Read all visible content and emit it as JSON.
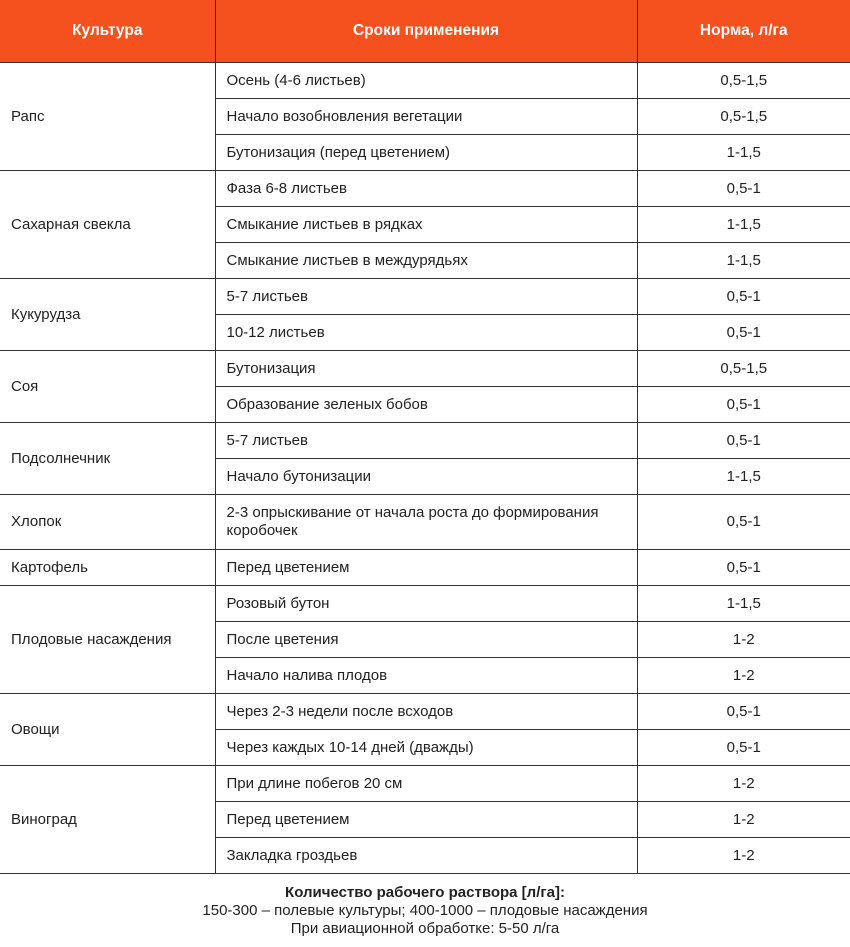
{
  "header": {
    "crop": "Культура",
    "timing": "Сроки применения",
    "rate": "Норма, л/га"
  },
  "accent_color": "#f4511e",
  "groups": [
    {
      "crop": "Рапс",
      "rows": [
        [
          "Осень (4-6 листьев)",
          "0,5-1,5"
        ],
        [
          "Начало возобновления вегетации",
          "0,5-1,5"
        ],
        [
          "Бутонизация (перед цветением)",
          "1-1,5"
        ]
      ]
    },
    {
      "crop": "Сахарная свекла",
      "rows": [
        [
          "Фаза 6-8 листьев",
          "0,5-1"
        ],
        [
          "Смыкание листьев в рядках",
          "1-1,5"
        ],
        [
          "Смыкание листьев в междурядьях",
          "1-1,5"
        ]
      ]
    },
    {
      "crop": "Кукурудза",
      "rows": [
        [
          "5-7 листьев",
          "0,5-1"
        ],
        [
          "10-12 листьев",
          "0,5-1"
        ]
      ]
    },
    {
      "crop": "Соя",
      "rows": [
        [
          "Бутонизация",
          "0,5-1,5"
        ],
        [
          "Образование зеленых бобов",
          "0,5-1"
        ]
      ]
    },
    {
      "crop": "Подсолнечник",
      "rows": [
        [
          "5-7 листьев",
          "0,5-1"
        ],
        [
          "Начало бутонизации",
          "1-1,5"
        ]
      ]
    },
    {
      "crop": "Хлопок",
      "rows": [
        [
          "2-3 опрыскивание от начала роста до формирования коробочек",
          "0,5-1"
        ]
      ]
    },
    {
      "crop": "Картофель",
      "rows": [
        [
          "Перед цветением",
          "0,5-1"
        ]
      ]
    },
    {
      "crop": "Плодовые насаждения",
      "rows": [
        [
          "Розовый бутон",
          "1-1,5"
        ],
        [
          "После цветения",
          "1-2"
        ],
        [
          "Начало налива плодов",
          "1-2"
        ]
      ]
    },
    {
      "crop": "Овощи",
      "rows": [
        [
          "Через 2-3 недели после всходов",
          "0,5-1"
        ],
        [
          "Через каждых 10-14 дней (дважды)",
          "0,5-1"
        ]
      ]
    },
    {
      "crop": "Виноград",
      "rows": [
        [
          "При длине побегов 20 см",
          "1-2"
        ],
        [
          "Перед цветением",
          "1-2"
        ],
        [
          "Закладка гроздьев",
          "1-2"
        ]
      ]
    }
  ],
  "footer": {
    "title": "Количество рабочего раствора [л/га]:",
    "line1": "150-300 – полевые культуры; 400-1000 – плодовые насаждения",
    "line2": "При авиационной обработке: 5-50 л/га"
  }
}
